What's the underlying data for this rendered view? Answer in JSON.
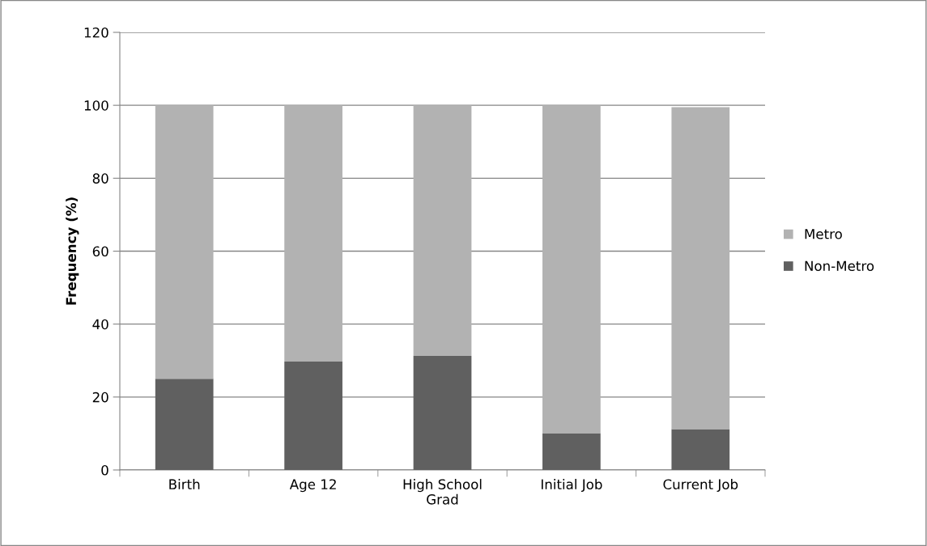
{
  "chart_data": {
    "type": "bar",
    "stacked": true,
    "ylabel": "Frequency (%)",
    "categories": [
      "Birth",
      "Age 12",
      "High School\nGrad",
      "Initial Job",
      "Current Job"
    ],
    "series": [
      {
        "name": "Non-Metro",
        "color": "#606060",
        "values": [
          25,
          29.7,
          31.3,
          10.1,
          11.2
        ]
      },
      {
        "name": "Metro",
        "color": "#b2b2b2",
        "values": [
          75,
          70.3,
          68.7,
          89.9,
          88.3
        ]
      }
    ],
    "ylim": [
      0,
      120
    ],
    "yticks": [
      0,
      20,
      40,
      60,
      80,
      100,
      120
    ],
    "grid": "y",
    "legend": "right"
  }
}
